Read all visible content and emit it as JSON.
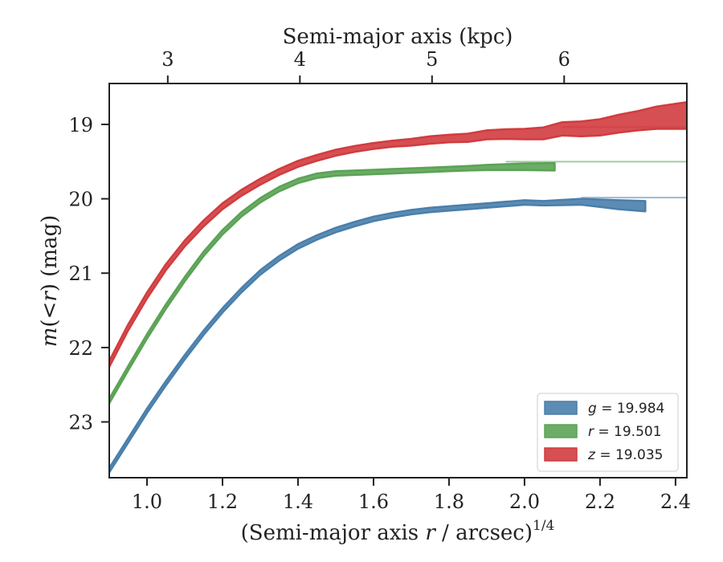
{
  "chart_data": {
    "type": "line",
    "xlabel_main": "(Semi-major axis ",
    "xlabel_var": "r",
    "xlabel_tail": " / arcsec)",
    "xlabel_sup": "1/4",
    "ylabel_pre": "m",
    "ylabel_paren": "(<",
    "ylabel_var": "r",
    "ylabel_post": ") (mag)",
    "top_xlabel": "Semi-major axis (kpc)",
    "xlim": [
      0.9,
      2.43
    ],
    "ylim": [
      23.75,
      18.45
    ],
    "y_inverted": true,
    "xticks": [
      1.0,
      1.2,
      1.4,
      1.6,
      1.8,
      2.0,
      2.2,
      2.4
    ],
    "xtick_labels": [
      "1.0",
      "1.2",
      "1.4",
      "1.6",
      "1.8",
      "2.0",
      "2.2",
      "2.4"
    ],
    "yticks": [
      19,
      20,
      21,
      22,
      23
    ],
    "ytick_labels": [
      "19",
      "20",
      "21",
      "22",
      "23"
    ],
    "top_ticks_kpc": [
      3,
      4,
      5,
      6
    ],
    "top_tick_x_positions": [
      1.055,
      1.405,
      1.755,
      2.105
    ],
    "top_tick_labels": [
      "3",
      "4",
      "5",
      "6"
    ],
    "legend_position": "lower right",
    "grid": false,
    "series": [
      {
        "band": "g",
        "value": "19.984",
        "color": "#4a7fab",
        "asymptote": 19.984,
        "x": [
          0.9,
          0.95,
          1.0,
          1.05,
          1.1,
          1.15,
          1.2,
          1.25,
          1.3,
          1.35,
          1.4,
          1.45,
          1.5,
          1.55,
          1.6,
          1.65,
          1.7,
          1.75,
          1.8,
          1.85,
          1.9,
          1.95,
          2.0,
          2.05,
          2.1,
          2.15,
          2.2,
          2.25,
          2.32
        ],
        "y": [
          23.65,
          23.25,
          22.85,
          22.48,
          22.13,
          21.8,
          21.5,
          21.23,
          20.99,
          20.8,
          20.64,
          20.52,
          20.42,
          20.34,
          20.27,
          20.22,
          20.18,
          20.15,
          20.13,
          20.11,
          20.09,
          20.07,
          20.05,
          20.06,
          20.05,
          20.04,
          20.06,
          20.08,
          20.1
        ],
        "width": [
          0.03,
          0.03,
          0.03,
          0.03,
          0.03,
          0.03,
          0.03,
          0.03,
          0.03,
          0.03,
          0.03,
          0.03,
          0.03,
          0.03,
          0.03,
          0.03,
          0.03,
          0.03,
          0.03,
          0.03,
          0.03,
          0.03,
          0.03,
          0.03,
          0.035,
          0.04,
          0.05,
          0.06,
          0.07
        ],
        "model_x": [
          2.15,
          2.43
        ]
      },
      {
        "band": "r",
        "value": "19.501",
        "color": "#5ba355",
        "asymptote": 19.501,
        "x": [
          0.9,
          0.95,
          1.0,
          1.05,
          1.1,
          1.15,
          1.2,
          1.25,
          1.3,
          1.35,
          1.4,
          1.45,
          1.5,
          1.55,
          1.6,
          1.65,
          1.7,
          1.75,
          1.8,
          1.85,
          1.9,
          1.95,
          2.0,
          2.08
        ],
        "y": [
          22.72,
          22.28,
          21.85,
          21.45,
          21.08,
          20.74,
          20.45,
          20.21,
          20.02,
          19.87,
          19.76,
          19.69,
          19.66,
          19.65,
          19.64,
          19.63,
          19.62,
          19.61,
          19.6,
          19.59,
          19.58,
          19.575,
          19.57,
          19.57
        ],
        "width": [
          0.03,
          0.03,
          0.03,
          0.03,
          0.03,
          0.03,
          0.03,
          0.03,
          0.03,
          0.03,
          0.03,
          0.03,
          0.03,
          0.03,
          0.03,
          0.03,
          0.03,
          0.03,
          0.03,
          0.03,
          0.035,
          0.04,
          0.045,
          0.05
        ],
        "model_x": [
          1.95,
          2.43
        ]
      },
      {
        "band": "z",
        "value": "19.035",
        "color": "#d13c3f",
        "asymptote": 19.035,
        "x": [
          0.9,
          0.95,
          1.0,
          1.05,
          1.1,
          1.15,
          1.2,
          1.25,
          1.3,
          1.35,
          1.4,
          1.45,
          1.5,
          1.55,
          1.6,
          1.65,
          1.7,
          1.75,
          1.8,
          1.85,
          1.9,
          1.95,
          2.0,
          2.05,
          2.1,
          2.15,
          2.2,
          2.25,
          2.3,
          2.35,
          2.43
        ],
        "y": [
          22.22,
          21.73,
          21.3,
          20.92,
          20.6,
          20.33,
          20.1,
          19.92,
          19.77,
          19.64,
          19.53,
          19.45,
          19.38,
          19.33,
          19.29,
          19.26,
          19.24,
          19.21,
          19.19,
          19.18,
          19.14,
          19.13,
          19.13,
          19.12,
          19.06,
          19.06,
          19.04,
          18.99,
          18.95,
          18.91,
          18.88
        ],
        "width": [
          0.04,
          0.04,
          0.04,
          0.04,
          0.04,
          0.04,
          0.04,
          0.04,
          0.04,
          0.04,
          0.04,
          0.04,
          0.04,
          0.04,
          0.04,
          0.04,
          0.045,
          0.05,
          0.05,
          0.055,
          0.06,
          0.065,
          0.07,
          0.08,
          0.09,
          0.1,
          0.11,
          0.12,
          0.13,
          0.15,
          0.18
        ],
        "model_x": [
          2.1,
          2.43
        ]
      }
    ]
  }
}
